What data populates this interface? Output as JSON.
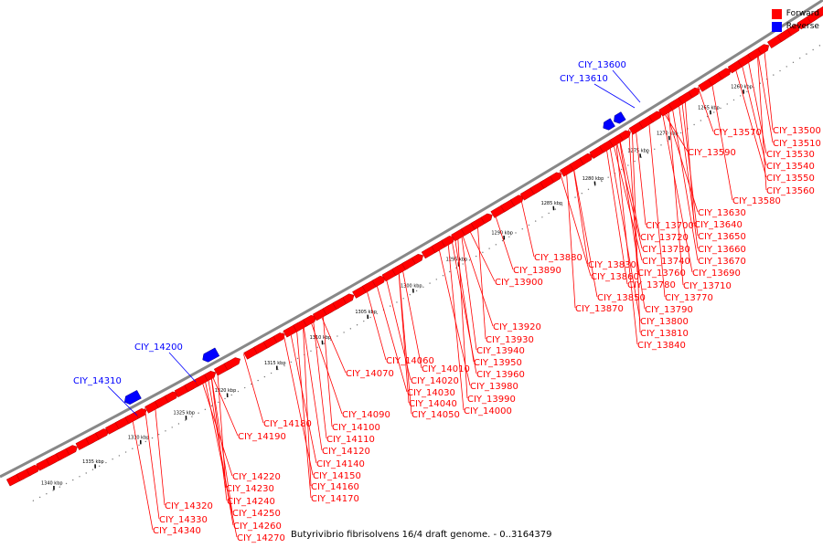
{
  "caption": "Butyrivibrio fibrisolvens 16/4 draft genome. - 0..3164379",
  "legend": [
    {
      "label": "Forward",
      "color": "#ff0000"
    },
    {
      "label": "Reverse",
      "color": "#0000ff"
    }
  ],
  "colors": {
    "forward": "#ff0000",
    "reverse": "#0000ff",
    "backbone": "#888888"
  },
  "scale_ticks": [
    "1260 kbp",
    "1265 kbp",
    "1270 kbp",
    "1275 kbp",
    "1280 kbp",
    "1285 kbp",
    "1290 kbp",
    "1295 kbp",
    "1300 kbp",
    "1305 kbp",
    "1310 kbp",
    "1315 kbp",
    "1320 kbp",
    "1325 kbp",
    "1330 kbp",
    "1335 kbp",
    "1340 kbp"
  ],
  "reverse_labels": [
    "CIY_13600",
    "CIY_13610",
    "CIY_14200",
    "CIY_14310"
  ],
  "forward_labels": [
    "CIY_13500",
    "CIY_13510",
    "CIY_13530",
    "CIY_13540",
    "CIY_13550",
    "CIY_13560",
    "CIY_13570",
    "CIY_13580",
    "CIY_13590",
    "CIY_13630",
    "CIY_13640",
    "CIY_13650",
    "CIY_13660",
    "CIY_13670",
    "CIY_13690",
    "CIY_13700",
    "CIY_13710",
    "CIY_13720",
    "CIY_13730",
    "CIY_13740",
    "CIY_13760",
    "CIY_13770",
    "CIY_13780",
    "CIY_13790",
    "CIY_13800",
    "CIY_13810",
    "CIY_13830",
    "CIY_13840",
    "CIY_13850",
    "CIY_13860",
    "CIY_13870",
    "CIY_13880",
    "CIY_13890",
    "CIY_13900",
    "CIY_13920",
    "CIY_13930",
    "CIY_13940",
    "CIY_13950",
    "CIY_13960",
    "CIY_13980",
    "CIY_13990",
    "CIY_14000",
    "CIY_14010",
    "CIY_14020",
    "CIY_14030",
    "CIY_14040",
    "CIY_14050",
    "CIY_14060",
    "CIY_14070",
    "CIY_14090",
    "CIY_14100",
    "CIY_14110",
    "CIY_14120",
    "CIY_14140",
    "CIY_14150",
    "CIY_14160",
    "CIY_14170",
    "CIY_14180",
    "CIY_14190",
    "CIY_14220",
    "CIY_14230",
    "CIY_14240",
    "CIY_14250",
    "CIY_14260",
    "CIY_14270",
    "CIY_14320",
    "CIY_14330",
    "CIY_14340"
  ]
}
